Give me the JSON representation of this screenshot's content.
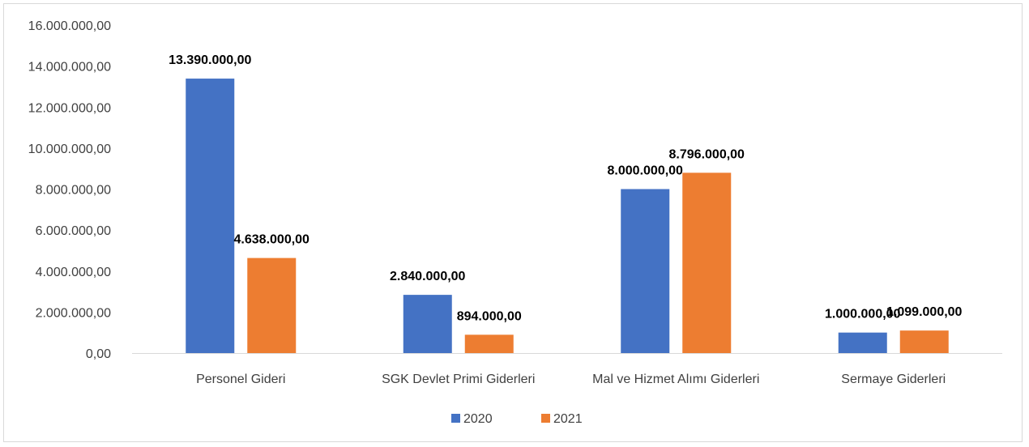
{
  "chart_data": {
    "type": "bar",
    "title": "",
    "xlabel": "",
    "ylabel": "",
    "categories": [
      "Personel Gideri",
      "SGK Devlet Primi Giderleri",
      "Mal ve Hizmet Alımı Giderleri",
      "Sermaye Giderleri"
    ],
    "series": [
      {
        "name": "2020",
        "color": "#4472C4",
        "values": [
          13390000,
          2840000,
          8000000,
          1000000
        ],
        "labels": [
          "13.390.000,00",
          "2.840.000,00",
          "8.000.000,00",
          "1.000.000,00"
        ]
      },
      {
        "name": "2021",
        "color": "#ED7D31",
        "values": [
          4638000,
          894000,
          8796000,
          1099000
        ],
        "labels": [
          "4.638.000,00",
          "894.000,00",
          "8.796.000,00",
          "1.099.000,00"
        ]
      }
    ],
    "ylim": [
      0,
      16000000
    ],
    "yticks": [
      0,
      2000000,
      4000000,
      6000000,
      8000000,
      10000000,
      12000000,
      14000000,
      16000000
    ],
    "ytick_labels": [
      "0,00",
      "2.000.000,00",
      "4.000.000,00",
      "6.000.000,00",
      "8.000.000,00",
      "10.000.000,00",
      "12.000.000,00",
      "14.000.000,00",
      "16.000.000,00"
    ],
    "grid": false,
    "legend_position": "bottom"
  }
}
